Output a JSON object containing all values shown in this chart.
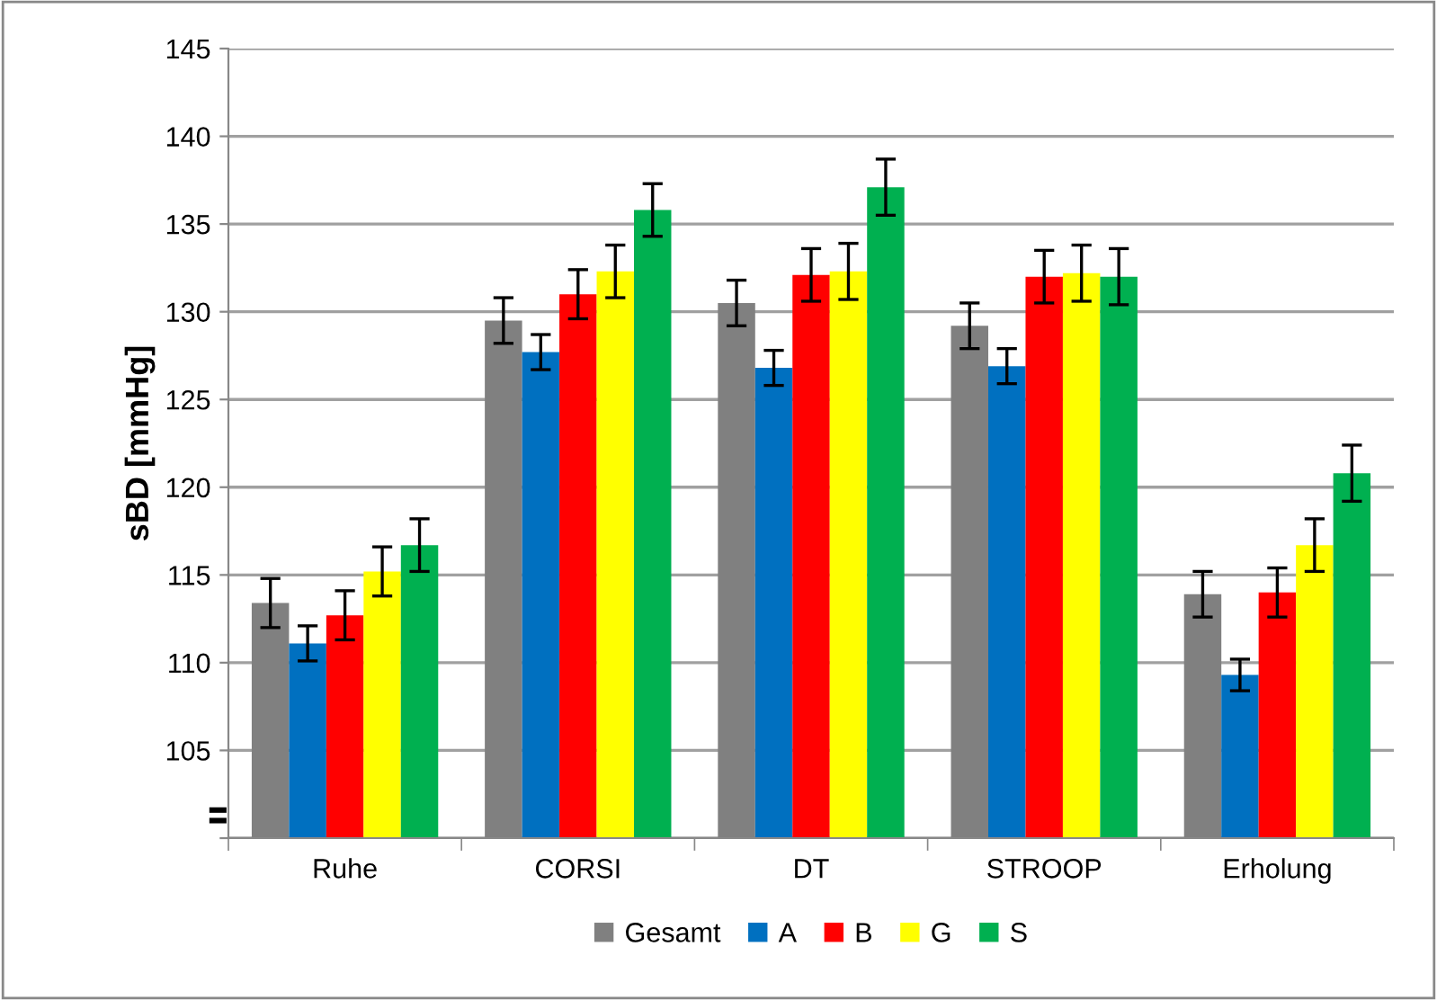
{
  "chart_data": {
    "type": "bar",
    "ylabel": "sBD [mmHg]",
    "categories": [
      "Ruhe",
      "CORSI",
      "DT",
      "STROOP",
      "Erholung"
    ],
    "series": [
      {
        "name": "Gesamt",
        "color": "#808080",
        "values": [
          113.4,
          129.5,
          130.5,
          129.2,
          113.9
        ],
        "errors": [
          1.4,
          1.3,
          1.3,
          1.3,
          1.3
        ]
      },
      {
        "name": "A",
        "color": "#0070c0",
        "values": [
          111.1,
          127.7,
          126.8,
          126.9,
          109.3
        ],
        "errors": [
          1.0,
          1.0,
          1.0,
          1.0,
          0.9
        ]
      },
      {
        "name": "B",
        "color": "#ff0000",
        "values": [
          112.7,
          131.0,
          132.1,
          132.0,
          114.0
        ],
        "errors": [
          1.4,
          1.4,
          1.5,
          1.5,
          1.4
        ]
      },
      {
        "name": "G",
        "color": "#ffff00",
        "values": [
          115.2,
          132.3,
          132.3,
          132.2,
          116.7
        ],
        "errors": [
          1.4,
          1.5,
          1.6,
          1.6,
          1.5
        ]
      },
      {
        "name": "S",
        "color": "#00b050",
        "values": [
          116.7,
          135.8,
          137.1,
          132.0,
          120.8
        ],
        "errors": [
          1.5,
          1.5,
          1.6,
          1.6,
          1.6
        ]
      }
    ],
    "ylim": [
      100,
      145
    ],
    "yticks": [
      {
        "value": 100,
        "label": null
      },
      105,
      110,
      115,
      120,
      125,
      130,
      135,
      140,
      145
    ],
    "grid": "y",
    "legend": "bottom"
  }
}
